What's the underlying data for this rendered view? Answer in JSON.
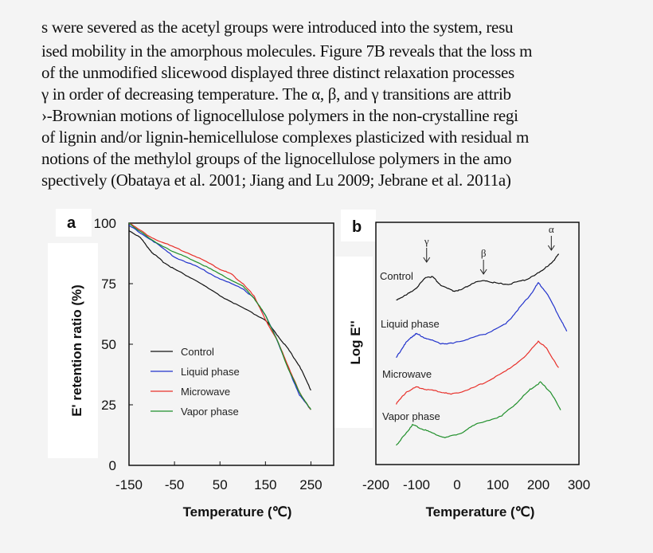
{
  "paragraph": [
    "s were severed as the acetyl groups were introduced into the system, resu",
    "ised mobility in the amorphous molecules. Figure 7B reveals that the loss m",
    "of the unmodified slicewood displayed three distinct relaxation processes",
    " γ in order of decreasing temperature. The α, β, and γ transitions are attrib",
    "›-Brownian motions of lignocellulose polymers in the non-crystalline regi",
    "of lignin and/or lignin-hemicellulose complexes plasticized with residual m",
    "notions of the methylol groups of the lignocellulose polymers in the amo",
    "spectively (Obataya et al. 2001; Jiang and Lu 2009; Jebrane et al. 2011a)"
  ],
  "chart_data": [
    {
      "type": "line",
      "panel_label": "a",
      "xlabel": "Temperature (℃)",
      "ylabel": "E' retention ratio (%)",
      "xlim": [
        -150,
        300
      ],
      "ylim": [
        0,
        100
      ],
      "x_ticks": [
        "-150",
        "-50",
        "50",
        "150",
        "250"
      ],
      "y_ticks": [
        "0",
        "25",
        "50",
        "75",
        "100"
      ],
      "legend_position": "center-left",
      "grid": false,
      "series": [
        {
          "name": "Control",
          "color": "#111111",
          "x": [
            -150,
            -125,
            -100,
            -75,
            -50,
            0,
            50,
            100,
            150,
            175,
            200,
            225,
            250
          ],
          "y": [
            97,
            94,
            88,
            84,
            81,
            76,
            70,
            65,
            60,
            54,
            48,
            41,
            31
          ]
        },
        {
          "name": "Liquid phase",
          "color": "#2233cc",
          "x": [
            -150,
            -100,
            -50,
            0,
            50,
            100,
            125,
            150,
            175,
            200,
            225,
            250
          ],
          "y": [
            99,
            93,
            86,
            82,
            77,
            73,
            69,
            62,
            52,
            40,
            29,
            23
          ]
        },
        {
          "name": "Microwave",
          "color": "#e8302a",
          "x": [
            -150,
            -100,
            -50,
            0,
            50,
            75,
            100,
            125,
            150,
            175,
            200,
            225,
            250
          ],
          "y": [
            100,
            94,
            90,
            86,
            81,
            79,
            75,
            70,
            60,
            52,
            41,
            30,
            23
          ]
        },
        {
          "name": "Vapor phase",
          "color": "#1f8f2a",
          "x": [
            -150,
            -100,
            -50,
            0,
            50,
            100,
            125,
            150,
            175,
            200,
            225,
            250
          ],
          "y": [
            100,
            93,
            88,
            84,
            79,
            74,
            69,
            62,
            52,
            40,
            30,
            23
          ]
        }
      ]
    },
    {
      "type": "line",
      "panel_label": "b",
      "xlabel": "Temperature (℃)",
      "ylabel": "Log E''",
      "xlim": [
        -200,
        300
      ],
      "ylim": [
        0,
        100
      ],
      "x_ticks": [
        "-200",
        "-100",
        "0",
        "100",
        "200",
        "300"
      ],
      "grid": false,
      "annotations": [
        {
          "text": "γ",
          "x": -75
        },
        {
          "text": "β",
          "x": 65
        },
        {
          "text": "α",
          "x": 232
        }
      ],
      "series": [
        {
          "name": "Control",
          "color": "#111111",
          "x": [
            -150,
            -125,
            -100,
            -75,
            -60,
            -40,
            -10,
            10,
            40,
            70,
            100,
            130,
            170,
            210,
            240,
            250
          ],
          "y": [
            68,
            70,
            73,
            77.5,
            77.5,
            74,
            71.6,
            72,
            75,
            76,
            74.7,
            74.5,
            76.4,
            80,
            84.6,
            87
          ]
        },
        {
          "name": "Liquid phase",
          "color": "#2233cc",
          "x": [
            -150,
            -130,
            -110,
            -100,
            -75,
            -40,
            -10,
            30,
            70,
            120,
            150,
            180,
            200,
            220,
            250,
            270
          ],
          "y": [
            44,
            49.5,
            53,
            54,
            52,
            50,
            50,
            52,
            54,
            58,
            64,
            70,
            75,
            71,
            61.5,
            55
          ]
        },
        {
          "name": "Microwave",
          "color": "#e8302a",
          "x": [
            -150,
            -125,
            -100,
            -75,
            -40,
            -15,
            30,
            70,
            120,
            170,
            200,
            220,
            250
          ],
          "y": [
            25,
            30,
            32,
            31,
            30,
            29,
            31,
            34,
            38.5,
            45,
            51,
            48,
            40
          ]
        },
        {
          "name": "Vapor phase",
          "color": "#1f8f2a",
          "x": [
            -150,
            -125,
            -110,
            -90,
            -60,
            -30,
            10,
            50,
            110,
            150,
            180,
            205,
            230,
            255
          ],
          "y": [
            8,
            13,
            16.5,
            15,
            13,
            11,
            13,
            17,
            20,
            26,
            31,
            34,
            30,
            22.5
          ]
        }
      ]
    }
  ]
}
